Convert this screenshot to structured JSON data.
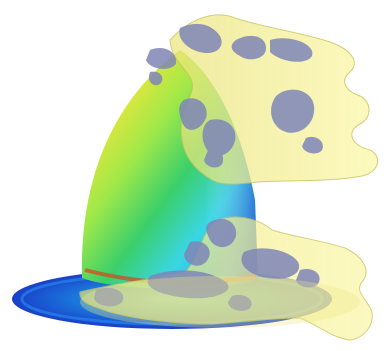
{
  "scene": {
    "subject": "rendered-cfd-visualization",
    "colors": {
      "background": "#ffffff",
      "isosurface_fill": "#f2ee8c",
      "isosurface_edge": "#c9c45a",
      "blob_fill": "#7f86b8",
      "plate_center": "#1a7fe0",
      "plate_edge": "#1a3fc8",
      "dome_top": "#ff6a1a",
      "dome_mid": "#f2e63a",
      "dome_green": "#3bcf6a",
      "dome_cyan": "#39d6e6",
      "dome_blue": "#2a6ee8"
    }
  }
}
